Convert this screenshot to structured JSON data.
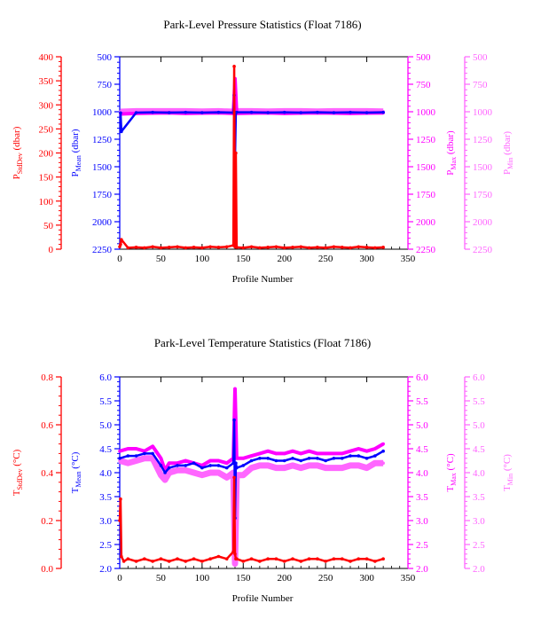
{
  "colors": {
    "stddev": "#ff0000",
    "mean": "#0000ff",
    "max": "#ff00ff",
    "min": "#ff66ff",
    "frame": "#000000"
  },
  "chart_data": [
    {
      "type": "scatter",
      "title": "Park-Level Pressure Statistics (Float 7186)",
      "xlabel": "Profile Number",
      "x_ticks": [
        "0",
        "50",
        "100",
        "150",
        "200",
        "250",
        "300",
        "350"
      ],
      "xlim": [
        0,
        350
      ],
      "axes": [
        {
          "key": "stddev",
          "label": "P",
          "sub": "StdDev",
          "unit": " (dbar)",
          "color": "#ff0000",
          "range": [
            0,
            400
          ],
          "inverted": false,
          "ticks": [
            "0",
            "50",
            "100",
            "150",
            "200",
            "250",
            "300",
            "350",
            "400"
          ]
        },
        {
          "key": "mean",
          "label": "P",
          "sub": "Mean",
          "unit": " (dbar)",
          "color": "#0000ff",
          "range": [
            500,
            2250
          ],
          "inverted": true,
          "ticks": [
            "500",
            "750",
            "1000",
            "1250",
            "1500",
            "1750",
            "2000",
            "2250"
          ]
        },
        {
          "key": "max",
          "label": "P",
          "sub": "Max",
          "unit": " (dbar)",
          "color": "#ff00ff",
          "range": [
            500,
            2250
          ],
          "inverted": true,
          "ticks": [
            "500",
            "750",
            "1000",
            "1250",
            "1500",
            "1750",
            "2000",
            "2250"
          ]
        },
        {
          "key": "min",
          "label": "P",
          "sub": "Min",
          "unit": " (dbar)",
          "color": "#ff66ff",
          "range": [
            500,
            2250
          ],
          "inverted": true,
          "ticks": [
            "500",
            "750",
            "1000",
            "1250",
            "1500",
            "1750",
            "2000",
            "2250"
          ]
        }
      ],
      "series": [
        {
          "axis": "min",
          "x": [
            1,
            20,
            40,
            60,
            80,
            100,
            120,
            138,
            140,
            142,
            160,
            180,
            200,
            220,
            240,
            260,
            280,
            300,
            320
          ],
          "values": [
            1000,
            995,
            995,
            995,
            995,
            998,
            995,
            1000,
            1000,
            995,
            995,
            998,
            995,
            995,
            998,
            995,
            995,
            995,
            998
          ]
        },
        {
          "axis": "max",
          "x": [
            1,
            20,
            40,
            60,
            80,
            100,
            120,
            138,
            140,
            142,
            160,
            180,
            200,
            220,
            240,
            260,
            280,
            300,
            320
          ],
          "values": [
            1020,
            1015,
            1012,
            1010,
            1015,
            1012,
            1010,
            1015,
            700,
            1015,
            1012,
            1010,
            1015,
            1012,
            1010,
            1012,
            1015,
            1012,
            1010
          ]
        },
        {
          "axis": "mean",
          "x": [
            1,
            2,
            20,
            40,
            60,
            80,
            100,
            120,
            138,
            139,
            140,
            141,
            142,
            160,
            180,
            200,
            220,
            240,
            260,
            280,
            300,
            320
          ],
          "values": [
            1010,
            1180,
            1008,
            1005,
            1008,
            1005,
            1008,
            1005,
            1008,
            850,
            1420,
            1008,
            1005,
            1005,
            1008,
            1005,
            1008,
            1005,
            1008,
            1005,
            1008,
            1005
          ]
        },
        {
          "axis": "stddev",
          "x": [
            0,
            1,
            2,
            10,
            20,
            30,
            40,
            50,
            60,
            70,
            80,
            90,
            100,
            110,
            120,
            130,
            138,
            139,
            140,
            141,
            142,
            150,
            160,
            170,
            180,
            190,
            200,
            210,
            220,
            230,
            240,
            250,
            260,
            270,
            280,
            290,
            300,
            310,
            320
          ],
          "values": [
            5,
            10,
            20,
            3,
            4,
            3,
            5,
            3,
            4,
            5,
            3,
            4,
            3,
            5,
            4,
            5,
            8,
            380,
            5,
            200,
            4,
            3,
            5,
            3,
            4,
            5,
            3,
            4,
            5,
            3,
            4,
            3,
            5,
            4,
            3,
            5,
            4,
            3,
            4
          ]
        }
      ]
    },
    {
      "type": "scatter",
      "title": "Park-Level Temperature Statistics (Float 7186)",
      "xlabel": "Profile Number",
      "x_ticks": [
        "0",
        "50",
        "100",
        "150",
        "200",
        "250",
        "300",
        "350"
      ],
      "xlim": [
        0,
        350
      ],
      "axes": [
        {
          "key": "stddev",
          "label": "T",
          "sub": "StdDev",
          "unit": " (°C)",
          "color": "#ff0000",
          "range": [
            0,
            0.8
          ],
          "inverted": false,
          "ticks": [
            "0.0",
            "0.2",
            "0.4",
            "0.6",
            "0.8"
          ]
        },
        {
          "key": "mean",
          "label": "T",
          "sub": "Mean",
          "unit": " (°C)",
          "color": "#0000ff",
          "range": [
            2.0,
            6.0
          ],
          "inverted": false,
          "ticks": [
            "2.0",
            "2.5",
            "3.0",
            "3.5",
            "4.0",
            "4.5",
            "5.0",
            "5.5",
            "6.0"
          ]
        },
        {
          "key": "max",
          "label": "T",
          "sub": "Max",
          "unit": " (°C)",
          "color": "#ff00ff",
          "range": [
            2.0,
            6.0
          ],
          "inverted": false,
          "ticks": [
            "2.0",
            "2.5",
            "3.0",
            "3.5",
            "4.0",
            "4.5",
            "5.0",
            "5.5",
            "6.0"
          ]
        },
        {
          "key": "min",
          "label": "T",
          "sub": "Min",
          "unit": " (°C)",
          "color": "#ff66ff",
          "range": [
            2.0,
            6.0
          ],
          "inverted": false,
          "ticks": [
            "2.0",
            "2.5",
            "3.0",
            "3.5",
            "4.0",
            "4.5",
            "5.0",
            "5.5",
            "6.0"
          ]
        }
      ],
      "series": [
        {
          "axis": "min",
          "x": [
            0,
            10,
            20,
            30,
            40,
            50,
            55,
            60,
            70,
            80,
            90,
            100,
            110,
            120,
            130,
            138,
            140,
            142,
            150,
            160,
            170,
            180,
            190,
            200,
            210,
            220,
            230,
            240,
            250,
            260,
            270,
            280,
            290,
            300,
            310,
            320
          ],
          "values": [
            4.25,
            4.2,
            4.25,
            4.3,
            4.3,
            3.95,
            3.85,
            4.0,
            4.05,
            4.05,
            4.0,
            3.95,
            4.0,
            4.0,
            3.9,
            4.0,
            2.1,
            3.95,
            3.95,
            4.1,
            4.15,
            4.15,
            4.1,
            4.1,
            4.15,
            4.1,
            4.15,
            4.15,
            4.1,
            4.1,
            4.1,
            4.15,
            4.15,
            4.1,
            4.2,
            4.2
          ]
        },
        {
          "axis": "max",
          "x": [
            0,
            10,
            20,
            30,
            40,
            50,
            55,
            60,
            70,
            80,
            90,
            100,
            110,
            120,
            130,
            138,
            140,
            142,
            150,
            160,
            170,
            180,
            190,
            200,
            210,
            220,
            230,
            240,
            250,
            260,
            270,
            280,
            290,
            300,
            310,
            320
          ],
          "values": [
            4.45,
            4.5,
            4.5,
            4.45,
            4.55,
            4.3,
            4.05,
            4.2,
            4.2,
            4.25,
            4.2,
            4.15,
            4.25,
            4.25,
            4.2,
            4.3,
            5.75,
            4.3,
            4.3,
            4.35,
            4.4,
            4.45,
            4.4,
            4.4,
            4.45,
            4.4,
            4.45,
            4.4,
            4.4,
            4.4,
            4.4,
            4.45,
            4.5,
            4.45,
            4.5,
            4.6
          ]
        },
        {
          "axis": "mean",
          "x": [
            0,
            10,
            20,
            30,
            40,
            50,
            55,
            60,
            70,
            80,
            90,
            100,
            110,
            120,
            130,
            138,
            139,
            140,
            141,
            142,
            150,
            160,
            170,
            180,
            190,
            200,
            210,
            220,
            230,
            240,
            250,
            260,
            270,
            280,
            290,
            300,
            310,
            320
          ],
          "values": [
            4.3,
            4.35,
            4.35,
            4.4,
            4.4,
            4.15,
            4.0,
            4.1,
            4.15,
            4.15,
            4.2,
            4.1,
            4.15,
            4.15,
            4.1,
            4.2,
            5.1,
            3.05,
            4.2,
            4.1,
            4.15,
            4.25,
            4.3,
            4.3,
            4.25,
            4.25,
            4.3,
            4.25,
            4.3,
            4.3,
            4.25,
            4.3,
            4.3,
            4.35,
            4.35,
            4.3,
            4.35,
            4.45
          ]
        },
        {
          "axis": "stddev",
          "x": [
            0,
            1,
            2,
            5,
            10,
            20,
            30,
            40,
            50,
            60,
            70,
            80,
            90,
            100,
            110,
            120,
            130,
            138,
            139,
            140,
            141,
            142,
            150,
            160,
            170,
            180,
            190,
            200,
            210,
            220,
            230,
            240,
            250,
            260,
            270,
            280,
            290,
            300,
            310,
            320
          ],
          "values": [
            0.2,
            0.29,
            0.05,
            0.03,
            0.04,
            0.03,
            0.04,
            0.03,
            0.04,
            0.03,
            0.04,
            0.03,
            0.04,
            0.03,
            0.04,
            0.05,
            0.04,
            0.07,
            0.38,
            0.06,
            0.04,
            0.04,
            0.03,
            0.04,
            0.03,
            0.04,
            0.04,
            0.03,
            0.04,
            0.03,
            0.04,
            0.04,
            0.03,
            0.04,
            0.04,
            0.03,
            0.04,
            0.04,
            0.03,
            0.04
          ]
        }
      ]
    }
  ]
}
